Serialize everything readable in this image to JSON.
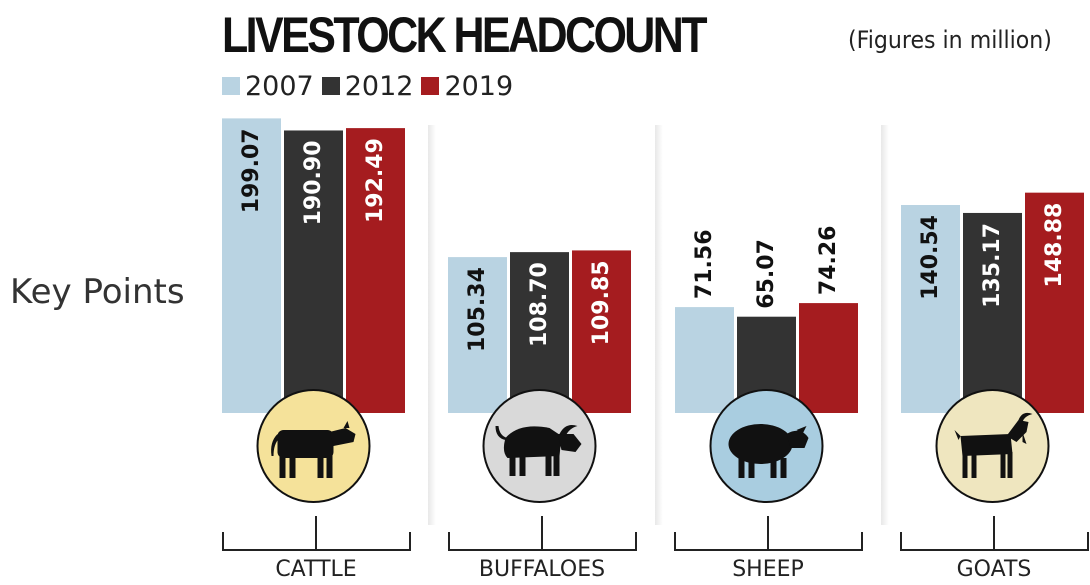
{
  "side_label": "Key Points",
  "chart_data": {
    "type": "bar",
    "title": "LIVESTOCK HEADCOUNT",
    "unit_note": "(Figures in million)",
    "categories": [
      "CATTLE",
      "BUFFALOES",
      "SHEEP",
      "GOATS"
    ],
    "series": [
      {
        "name": "2007",
        "color": "#b9d3e2",
        "values": [
          199.07,
          105.34,
          71.56,
          140.54
        ],
        "labels": [
          "199.07",
          "105.34",
          "71.56",
          "140.54"
        ]
      },
      {
        "name": "2012",
        "color": "#333333",
        "values": [
          190.9,
          108.7,
          65.07,
          135.17
        ],
        "labels": [
          "190.90",
          "108.70",
          "65.07",
          "135.17"
        ]
      },
      {
        "name": "2019",
        "color": "#a51c1f",
        "values": [
          192.49,
          109.85,
          74.26,
          148.88
        ],
        "labels": [
          "192.49",
          "109.85",
          "74.26",
          "148.88"
        ]
      }
    ],
    "animal_icons": [
      "cow-icon",
      "buffalo-icon",
      "sheep-icon",
      "goat-icon"
    ],
    "icon_circle_colors": [
      "#f5e29a",
      "#d9d9d9",
      "#a9cde0",
      "#efe6bf"
    ],
    "legend": "top-left",
    "grid": false,
    "ylim": [
      0,
      200
    ]
  }
}
